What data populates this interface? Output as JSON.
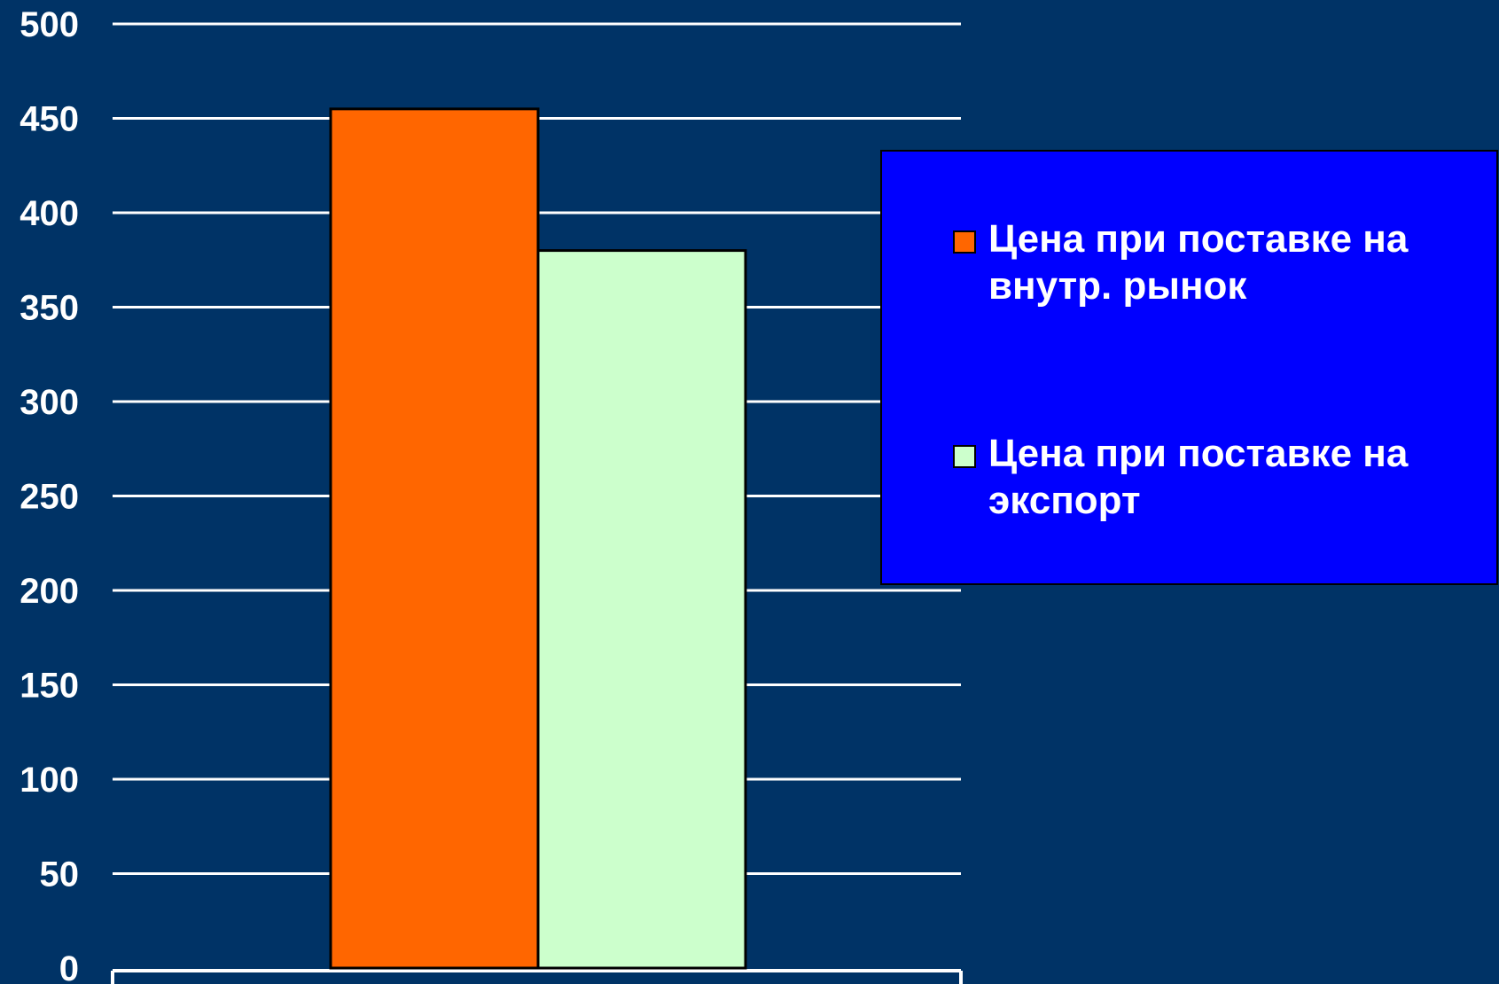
{
  "chart_data": {
    "type": "bar",
    "title": "",
    "xlabel": "",
    "ylabel": "",
    "categories": [
      ""
    ],
    "series": [
      {
        "name": "Цена при поставке на внутр. рынок",
        "values": [
          455
        ],
        "color": "#ff6600"
      },
      {
        "name": "Цена при поставке на экспорт",
        "values": [
          380
        ],
        "color": "#ccffcc"
      }
    ],
    "ylim": [
      0,
      500
    ],
    "y_ticks": [
      0,
      50,
      100,
      150,
      200,
      250,
      300,
      350,
      400,
      450,
      500
    ],
    "y_tick_labels": [
      "0",
      "50",
      "100",
      "150",
      "200",
      "250",
      "300",
      "350",
      "400",
      "450",
      "500"
    ],
    "grid": true,
    "legend_position": "right"
  },
  "colors": {
    "background": "#003366",
    "legend_background": "#0000ff",
    "text": "#ffffff",
    "gridline": "#ffffff"
  },
  "legend": {
    "items": [
      {
        "label": "Цена при поставке на внутр. рынок",
        "color": "#ff6600"
      },
      {
        "label": "Цена при поставке на экспорт",
        "color": "#ccffcc"
      }
    ]
  }
}
